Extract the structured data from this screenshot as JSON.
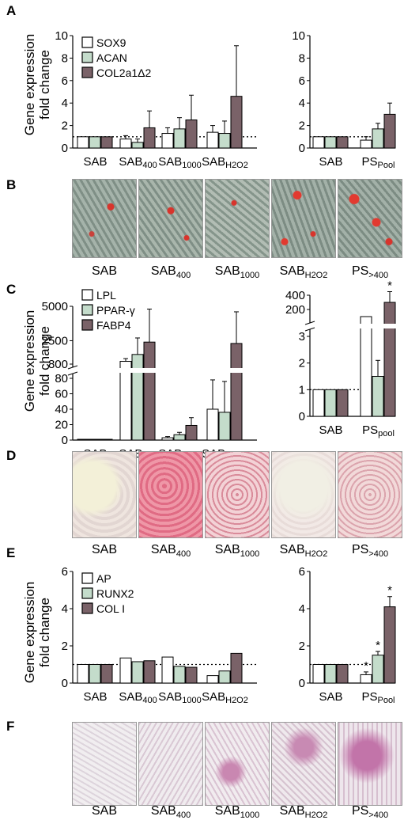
{
  "panels": {
    "A": {
      "label": "A",
      "ylabel_line1": "Gene expression",
      "ylabel_line2": "fold change"
    },
    "B": {
      "label": "B"
    },
    "C": {
      "label": "C",
      "ylabel_line1": "Gene expression",
      "ylabel_line2": "fold change"
    },
    "D": {
      "label": "D"
    },
    "E": {
      "label": "E",
      "ylabel_line1": "Gene expression",
      "ylabel_line2": "fold change"
    },
    "F": {
      "label": "F"
    }
  },
  "colors": {
    "white_bar": "#ffffff",
    "green_bar": "#c4dccb",
    "brown_bar": "#7a6268"
  },
  "chart_data": [
    {
      "id": "A-left",
      "type": "bar",
      "categories": [
        "SAB",
        "SAB400",
        "SAB1000",
        "SABH2O2"
      ],
      "category_labels": [
        [
          "SAB",
          ""
        ],
        [
          "SAB",
          "400"
        ],
        [
          "SAB",
          "1000"
        ],
        [
          "SAB",
          "H2O2"
        ]
      ],
      "series": [
        {
          "name": "SOX9",
          "values": [
            1.0,
            0.8,
            1.3,
            1.4
          ],
          "errors": [
            0,
            0.3,
            0.5,
            0.6
          ]
        },
        {
          "name": "ACAN",
          "values": [
            1.0,
            0.5,
            1.7,
            1.3
          ],
          "errors": [
            0,
            0.3,
            1.0,
            1.1
          ]
        },
        {
          "name": "COL2a1Δ2",
          "values": [
            1.0,
            1.8,
            2.5,
            4.6
          ],
          "errors": [
            0,
            1.5,
            2.2,
            4.5
          ]
        }
      ],
      "ylim": [
        0,
        10
      ],
      "yticks": [
        "0",
        "2",
        "4",
        "6",
        "8",
        "10"
      ],
      "reference_line": 1
    },
    {
      "id": "A-right",
      "type": "bar",
      "categories": [
        "SAB",
        "PSPool"
      ],
      "category_labels": [
        [
          "SAB",
          ""
        ],
        [
          "PS",
          "Pool"
        ]
      ],
      "series": [
        {
          "name": "SOX9",
          "values": [
            1.0,
            0.7
          ],
          "errors": [
            0,
            0.3
          ]
        },
        {
          "name": "ACAN",
          "values": [
            1.0,
            1.7
          ],
          "errors": [
            0,
            0.5
          ]
        },
        {
          "name": "COL2a1Δ2",
          "values": [
            1.0,
            3.0
          ],
          "errors": [
            0,
            1.0
          ]
        }
      ],
      "ylim": [
        0,
        10
      ],
      "yticks": [
        "0",
        "2",
        "4",
        "6",
        "8",
        "10"
      ],
      "reference_line": 1
    },
    {
      "id": "C-left",
      "type": "bar",
      "categories": [
        "SAB",
        "SAB400",
        "SAB1000",
        "SABH2O2"
      ],
      "category_labels": [
        [
          "SAB",
          ""
        ],
        [
          "SAB",
          "400"
        ],
        [
          "SAB",
          "1000"
        ],
        [
          "SAB",
          "H2O2"
        ]
      ],
      "series": [
        {
          "name": "LPL",
          "values": [
            1,
            1000,
            3,
            40
          ],
          "errors": [
            0,
            200,
            1.5,
            38
          ]
        },
        {
          "name": "PPAR-γ",
          "values": [
            1,
            1500,
            7,
            36
          ],
          "errors": [
            0,
            1200,
            3,
            40
          ]
        },
        {
          "name": "FABP4",
          "values": [
            1,
            2400,
            19,
            2300
          ],
          "errors": [
            0,
            2400,
            10,
            2300
          ]
        }
      ],
      "y_break": true,
      "yticks_lower": [
        "0",
        "20",
        "40",
        "60",
        "80"
      ],
      "yticks_upper": [
        "800",
        "2500",
        "5000"
      ]
    },
    {
      "id": "C-right",
      "type": "bar",
      "categories": [
        "SAB",
        "PSPool"
      ],
      "category_labels": [
        [
          "SAB",
          ""
        ],
        [
          "PS",
          "pool"
        ]
      ],
      "series": [
        {
          "name": "LPL",
          "values": [
            1,
            3.3
          ],
          "errors": [
            0,
            0.4
          ]
        },
        {
          "name": "PPAR-γ",
          "values": [
            1,
            1.5
          ],
          "errors": [
            0,
            0.6
          ]
        },
        {
          "name": "FABP4",
          "values": [
            1,
            300
          ],
          "errors": [
            0,
            150
          ]
        }
      ],
      "y_break": true,
      "yticks_lower": [
        "0",
        "1",
        "2",
        "3"
      ],
      "yticks_upper": [
        "200",
        "400"
      ],
      "annotations": [
        "*"
      ],
      "reference_line": 1
    },
    {
      "id": "E-left",
      "type": "bar",
      "categories": [
        "SAB",
        "SAB400",
        "SAB1000",
        "SABH2O2"
      ],
      "category_labels": [
        [
          "SAB",
          ""
        ],
        [
          "SAB",
          "400"
        ],
        [
          "SAB",
          "1000"
        ],
        [
          "SAB",
          "H2O2"
        ]
      ],
      "series": [
        {
          "name": "AP",
          "values": [
            1.0,
            1.35,
            1.4,
            0.4
          ],
          "errors": [
            0,
            0,
            0,
            0
          ]
        },
        {
          "name": "RUNX2",
          "values": [
            1.0,
            1.15,
            0.9,
            0.65
          ],
          "errors": [
            0,
            0,
            0,
            0
          ]
        },
        {
          "name": "COL I",
          "values": [
            1.0,
            1.2,
            0.85,
            1.6
          ],
          "errors": [
            0,
            0,
            0,
            0
          ]
        }
      ],
      "ylim": [
        0,
        6
      ],
      "yticks": [
        "0",
        "2",
        "4",
        "6"
      ],
      "reference_line": 1
    },
    {
      "id": "E-right",
      "type": "bar",
      "categories": [
        "SAB",
        "PSPool"
      ],
      "category_labels": [
        [
          "SAB",
          ""
        ],
        [
          "PS",
          "Pool"
        ]
      ],
      "series": [
        {
          "name": "AP",
          "values": [
            1.0,
            0.45
          ],
          "errors": [
            0,
            0.15
          ]
        },
        {
          "name": "RUNX2",
          "values": [
            1.0,
            1.5
          ],
          "errors": [
            0,
            0.2
          ]
        },
        {
          "name": "COL I",
          "values": [
            1.0,
            4.1
          ],
          "errors": [
            0,
            0.55
          ]
        }
      ],
      "ylim": [
        0,
        6
      ],
      "yticks": [
        "0",
        "2",
        "4",
        "6"
      ],
      "reference_line": 1,
      "annotations": [
        "*",
        "*",
        "*"
      ]
    }
  ],
  "photo_captions": [
    {
      "base": "SAB",
      "sub": ""
    },
    {
      "base": "SAB",
      "sub": "400"
    },
    {
      "base": "SAB",
      "sub": "1000"
    },
    {
      "base": "SAB",
      "sub": "H2O2"
    },
    {
      "base": "PS",
      "sub": ">400"
    }
  ]
}
